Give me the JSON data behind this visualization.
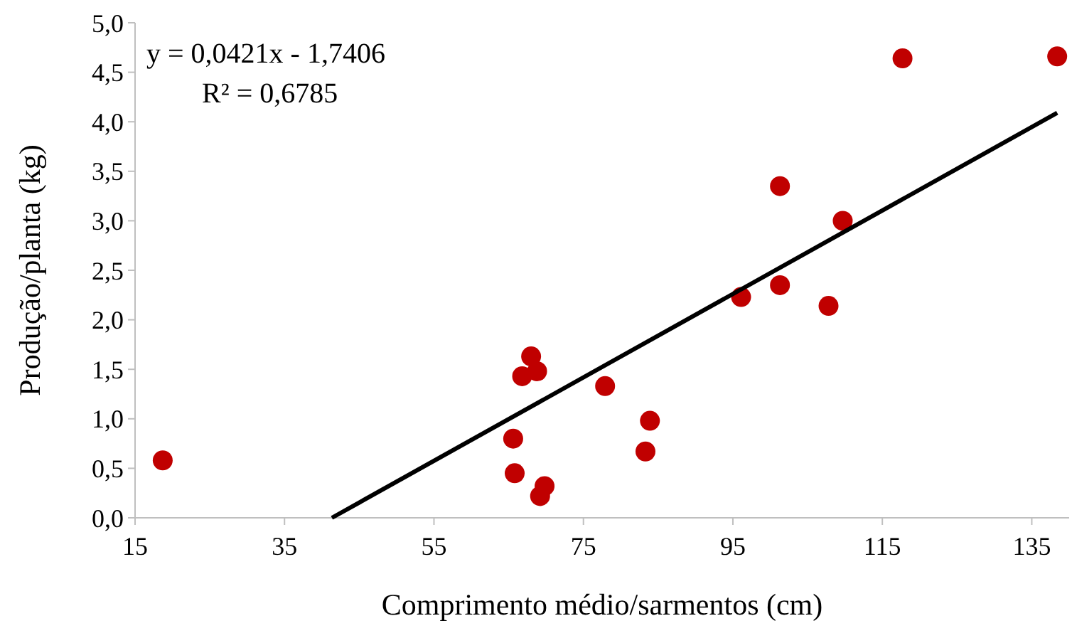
{
  "chart_data": {
    "type": "scatter",
    "xlabel": "Comprimento médio/sarmentos (cm)",
    "ylabel": "Produção/planta (kg)",
    "annotations": [
      "y = 0,0421x - 1,7406",
      "R² = 0,6785"
    ],
    "xlim": [
      15,
      140
    ],
    "xticks": [
      15,
      35,
      55,
      75,
      95,
      115,
      135
    ],
    "ylim": [
      0,
      5
    ],
    "yticks": [
      {
        "value": 0,
        "label": "0,0"
      },
      {
        "value": 0.5,
        "label": "0,5"
      },
      {
        "value": 1,
        "label": "1,0"
      },
      {
        "value": 1.5,
        "label": "1,5"
      },
      {
        "value": 2,
        "label": "2,0"
      },
      {
        "value": 2.5,
        "label": "2,5"
      },
      {
        "value": 3,
        "label": "3,0"
      },
      {
        "value": 3.5,
        "label": "3,5"
      },
      {
        "value": 4,
        "label": "4,0"
      },
      {
        "value": 4.5,
        "label": "4,5"
      },
      {
        "value": 5,
        "label": "5,0"
      }
    ],
    "grid": false,
    "marker": "circle",
    "series": [
      {
        "type": "scatter",
        "color": "#c00000",
        "x": [
          18.7,
          65.6,
          65.8,
          68.0,
          66.8,
          68.8,
          69.2,
          69.8,
          77.9,
          83.9,
          83.3,
          117.7,
          138.4,
          101.3,
          109.7,
          96.1,
          101.3,
          107.8
        ],
        "values": [
          0.58,
          0.8,
          0.45,
          1.63,
          1.43,
          1.48,
          0.22,
          0.32,
          1.33,
          0.98,
          0.67,
          4.64,
          4.66,
          3.35,
          3.0,
          2.23,
          2.35,
          2.14
        ]
      },
      {
        "type": "line",
        "color": "#000000",
        "marker": "none",
        "line_style": "solid",
        "x": [
          41.34,
          138.4
        ],
        "values": [
          0,
          4.09
        ]
      }
    ]
  }
}
